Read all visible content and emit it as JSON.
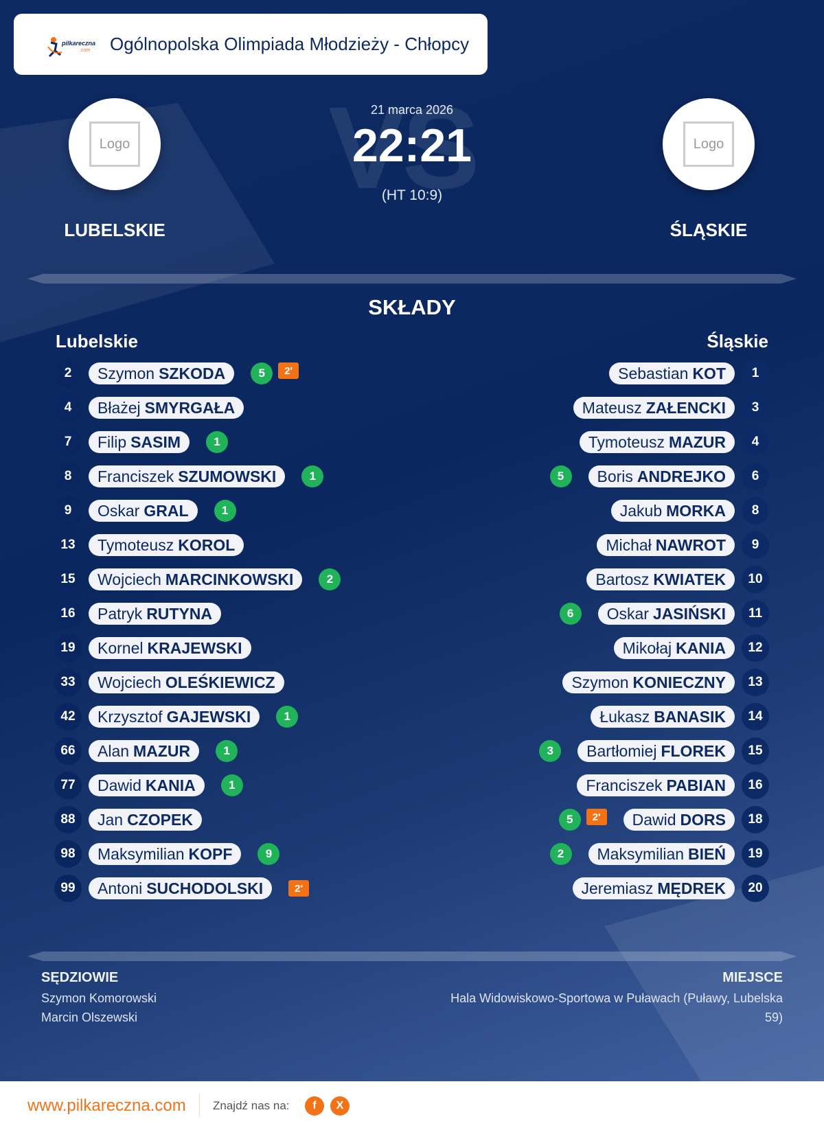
{
  "header": {
    "title": "Ogólnopolska Olimpiada Młodzieży - Chłopcy",
    "logo_text": "pilkareczna.com"
  },
  "match": {
    "date": "21 marca 2026",
    "score": "22:21",
    "halftime": "(HT 10:9)",
    "vs_watermark": "VS"
  },
  "home": {
    "name": "LUBELSKIE",
    "logo_placeholder": "Logo",
    "lineup_title": "Lubelskie"
  },
  "away": {
    "name": "ŚLĄSKIE",
    "logo_placeholder": "Logo",
    "lineup_title": "Śląskie"
  },
  "lineups_title": "SKŁADY",
  "home_players": [
    {
      "number": "2",
      "first": "Szymon",
      "last": "SZKODA",
      "goals": "5",
      "penalty": "2'"
    },
    {
      "number": "4",
      "first": "Błażej",
      "last": "SMYRGAŁA"
    },
    {
      "number": "7",
      "first": "Filip",
      "last": "SASIM",
      "goals": "1"
    },
    {
      "number": "8",
      "first": "Franciszek",
      "last": "SZUMOWSKI",
      "goals": "1"
    },
    {
      "number": "9",
      "first": "Oskar",
      "last": "GRAL",
      "goals": "1"
    },
    {
      "number": "13",
      "first": "Tymoteusz",
      "last": "KOROL"
    },
    {
      "number": "15",
      "first": "Wojciech",
      "last": "MARCINKOWSKI",
      "goals": "2"
    },
    {
      "number": "16",
      "first": "Patryk",
      "last": "RUTYNA"
    },
    {
      "number": "19",
      "first": "Kornel",
      "last": "KRAJEWSKI"
    },
    {
      "number": "33",
      "first": "Wojciech",
      "last": "OLEŚKIEWICZ"
    },
    {
      "number": "42",
      "first": "Krzysztof",
      "last": "GAJEWSKI",
      "goals": "1"
    },
    {
      "number": "66",
      "first": "Alan",
      "last": "MAZUR",
      "goals": "1"
    },
    {
      "number": "77",
      "first": "Dawid",
      "last": "KANIA",
      "goals": "1"
    },
    {
      "number": "88",
      "first": "Jan",
      "last": "CZOPEK"
    },
    {
      "number": "98",
      "first": "Maksymilian",
      "last": "KOPF",
      "goals": "9"
    },
    {
      "number": "99",
      "first": "Antoni",
      "last": "SUCHODOLSKI",
      "penalty": "2'"
    }
  ],
  "away_players": [
    {
      "number": "1",
      "first": "Sebastian",
      "last": "KOT"
    },
    {
      "number": "3",
      "first": "Mateusz",
      "last": "ZAŁENCKI"
    },
    {
      "number": "4",
      "first": "Tymoteusz",
      "last": "MAZUR"
    },
    {
      "number": "6",
      "first": "Boris",
      "last": "ANDREJKO",
      "goals": "5"
    },
    {
      "number": "8",
      "first": "Jakub",
      "last": "MORKA"
    },
    {
      "number": "9",
      "first": "Michał",
      "last": "NAWROT"
    },
    {
      "number": "10",
      "first": "Bartosz",
      "last": "KWIATEK"
    },
    {
      "number": "11",
      "first": "Oskar",
      "last": "JASIŃSKI",
      "goals": "6"
    },
    {
      "number": "12",
      "first": "Mikołaj",
      "last": "KANIA"
    },
    {
      "number": "13",
      "first": "Szymon",
      "last": "KONIECZNY"
    },
    {
      "number": "14",
      "first": "Łukasz",
      "last": "BANASIK"
    },
    {
      "number": "15",
      "first": "Bartłomiej",
      "last": "FLOREK",
      "goals": "3"
    },
    {
      "number": "16",
      "first": "Franciszek",
      "last": "PABIAN"
    },
    {
      "number": "18",
      "first": "Dawid",
      "last": "DORS",
      "goals": "5",
      "penalty": "2'"
    },
    {
      "number": "19",
      "first": "Maksymilian",
      "last": "BIEŃ",
      "goals": "2"
    },
    {
      "number": "20",
      "first": "Jeremiasz",
      "last": "MĘDREK"
    }
  ],
  "referees": {
    "title": "SĘDZIOWIE",
    "names": [
      "Szymon Komorowski",
      "Marcin Olszewski"
    ]
  },
  "venue": {
    "title": "MIEJSCE",
    "text": "Hala Widowiskowo-Sportowa w Puławach (Puławy, Lubelska 59)"
  },
  "footer": {
    "site": "www.pilkareczna.com",
    "find_us": "Znajdź nas na:",
    "social": [
      {
        "icon": "facebook-icon",
        "glyph": "f"
      },
      {
        "icon": "x-icon",
        "glyph": "X"
      }
    ]
  },
  "colors": {
    "navy": "#0b275f",
    "goal": "#21b35a",
    "penalty": "#f47216",
    "accent": "#f47216"
  }
}
